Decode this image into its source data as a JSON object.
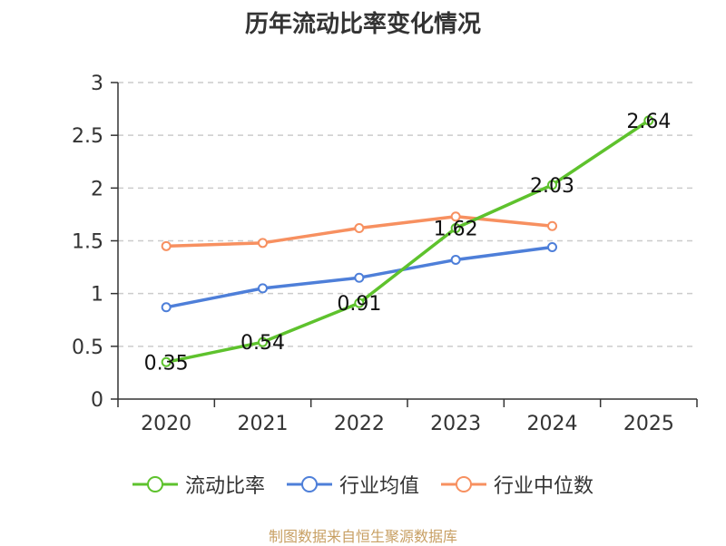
{
  "chart_data": {
    "type": "line",
    "title": "历年流动比率变化情况",
    "categories": [
      "2020",
      "2021",
      "2022",
      "2023",
      "2024",
      "2025"
    ],
    "ylim": [
      0,
      3
    ],
    "yticks": [
      0,
      0.5,
      1,
      1.5,
      2,
      2.5,
      3
    ],
    "ytick_labels": [
      "0",
      "0.5",
      "1",
      "1.5",
      "2",
      "2.5",
      "3"
    ],
    "grid": true,
    "legend_position": "bottom",
    "series": [
      {
        "name": "流动比率",
        "color": "#5ec22d",
        "values": [
          0.35,
          0.54,
          0.91,
          1.62,
          2.03,
          2.64
        ],
        "labels": [
          "0.35",
          "0.54",
          "0.91",
          "1.62",
          "2.03",
          "2.64"
        ]
      },
      {
        "name": "行业均值",
        "color": "#4e7fd9",
        "values": [
          0.87,
          1.05,
          1.15,
          1.32,
          1.44,
          null
        ]
      },
      {
        "name": "行业中位数",
        "color": "#f79060",
        "values": [
          1.45,
          1.48,
          1.62,
          1.73,
          1.64,
          null
        ]
      }
    ]
  },
  "footer": {
    "source": "制图数据来自恒生聚源数据库"
  }
}
